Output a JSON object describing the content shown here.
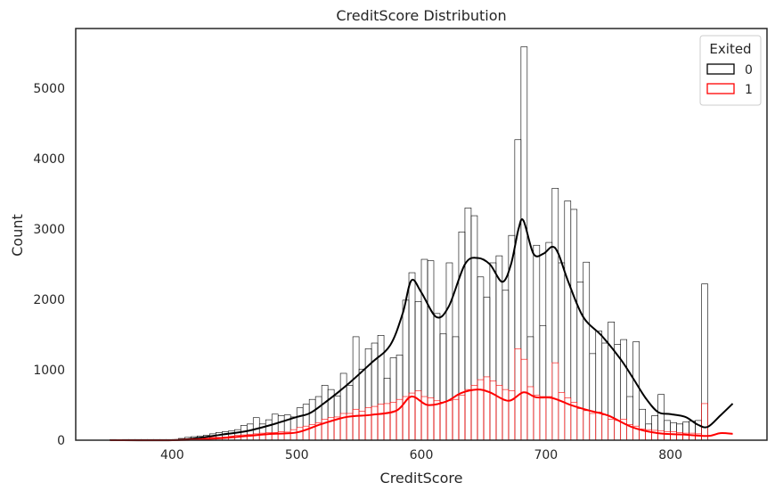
{
  "chart_data": {
    "type": "bar",
    "title": "CreditScore Distribution",
    "xlabel": "CreditScore",
    "ylabel": "Count",
    "xlim": [
      322.5,
      877.5
    ],
    "ylim": [
      0,
      5850
    ],
    "xticks": [
      400,
      500,
      600,
      700,
      800
    ],
    "yticks": [
      0,
      1000,
      2000,
      3000,
      4000,
      5000
    ],
    "bin_start": 350,
    "bin_width": 5,
    "legend": {
      "title": "Exited",
      "placement": "top-right",
      "entries": [
        {
          "label": "0",
          "color": "#000000"
        },
        {
          "label": "1",
          "color": "#ff0000"
        }
      ]
    },
    "series": [
      {
        "name": "0",
        "color": "#000000",
        "values": [
          10,
          5,
          10,
          10,
          10,
          10,
          10,
          10,
          10,
          10,
          10,
          25,
          40,
          50,
          60,
          70,
          90,
          110,
          120,
          130,
          150,
          210,
          230,
          320,
          230,
          290,
          370,
          350,
          360,
          330,
          460,
          510,
          580,
          620,
          780,
          720,
          630,
          950,
          780,
          1470,
          1010,
          1300,
          1380,
          1490,
          880,
          1170,
          1210,
          1990,
          2380,
          1970,
          2570,
          2550,
          1800,
          1510,
          2520,
          1470,
          2960,
          3300,
          3190,
          2320,
          2030,
          2520,
          2620,
          2130,
          2910,
          4270,
          5590,
          1470,
          2770,
          1630,
          2810,
          3580,
          2520,
          3400,
          3280,
          2250,
          2530,
          1230,
          1550,
          1380,
          1680,
          1360,
          1430,
          620,
          1400,
          440,
          230,
          350,
          650,
          280,
          250,
          230,
          260,
          270,
          280,
          2220
        ]
      },
      {
        "name": "1",
        "color": "#ff0000",
        "values": [
          0,
          0,
          0,
          0,
          0,
          0,
          0,
          0,
          0,
          0,
          0,
          10,
          20,
          20,
          20,
          30,
          40,
          40,
          45,
          60,
          70,
          75,
          80,
          90,
          100,
          110,
          110,
          120,
          115,
          150,
          180,
          200,
          220,
          250,
          300,
          320,
          330,
          380,
          380,
          440,
          410,
          460,
          480,
          510,
          520,
          540,
          580,
          620,
          670,
          700,
          620,
          600,
          560,
          540,
          560,
          580,
          640,
          720,
          780,
          860,
          900,
          840,
          780,
          720,
          700,
          1300,
          1150,
          760,
          640,
          620,
          620,
          1100,
          680,
          600,
          540,
          450,
          420,
          380,
          400,
          360,
          300,
          280,
          300,
          220,
          200,
          160,
          150,
          140,
          130,
          120,
          120,
          110,
          100,
          100,
          90,
          520
        ]
      }
    ],
    "kde": [
      {
        "name": "0",
        "x": [
          350,
          400,
          420,
          440,
          460,
          480,
          500,
          510,
          520,
          540,
          560,
          575,
          585,
          592,
          600,
          612,
          622,
          635,
          645,
          655,
          665,
          672,
          678,
          682,
          690,
          698,
          705,
          710,
          718,
          730,
          745,
          760,
          770,
          780,
          790,
          800,
          812,
          822,
          830,
          840,
          850
        ],
        "y": [
          0,
          0,
          30,
          80,
          130,
          220,
          330,
          380,
          500,
          780,
          1100,
          1350,
          1800,
          2270,
          2100,
          1750,
          1900,
          2500,
          2590,
          2500,
          2250,
          2500,
          3000,
          3120,
          2650,
          2650,
          2750,
          2650,
          2250,
          1750,
          1480,
          1150,
          880,
          600,
          400,
          370,
          330,
          220,
          190,
          350,
          520
        ]
      },
      {
        "name": "1",
        "x": [
          350,
          400,
          420,
          440,
          460,
          480,
          500,
          520,
          540,
          560,
          580,
          592,
          605,
          620,
          632,
          645,
          655,
          670,
          682,
          692,
          705,
          720,
          735,
          750,
          770,
          790,
          810,
          830,
          840,
          850
        ],
        "y": [
          0,
          0,
          10,
          30,
          60,
          90,
          110,
          230,
          330,
          360,
          420,
          620,
          500,
          550,
          670,
          720,
          680,
          560,
          680,
          610,
          600,
          500,
          420,
          350,
          180,
          100,
          80,
          60,
          100,
          90
        ]
      }
    ]
  }
}
